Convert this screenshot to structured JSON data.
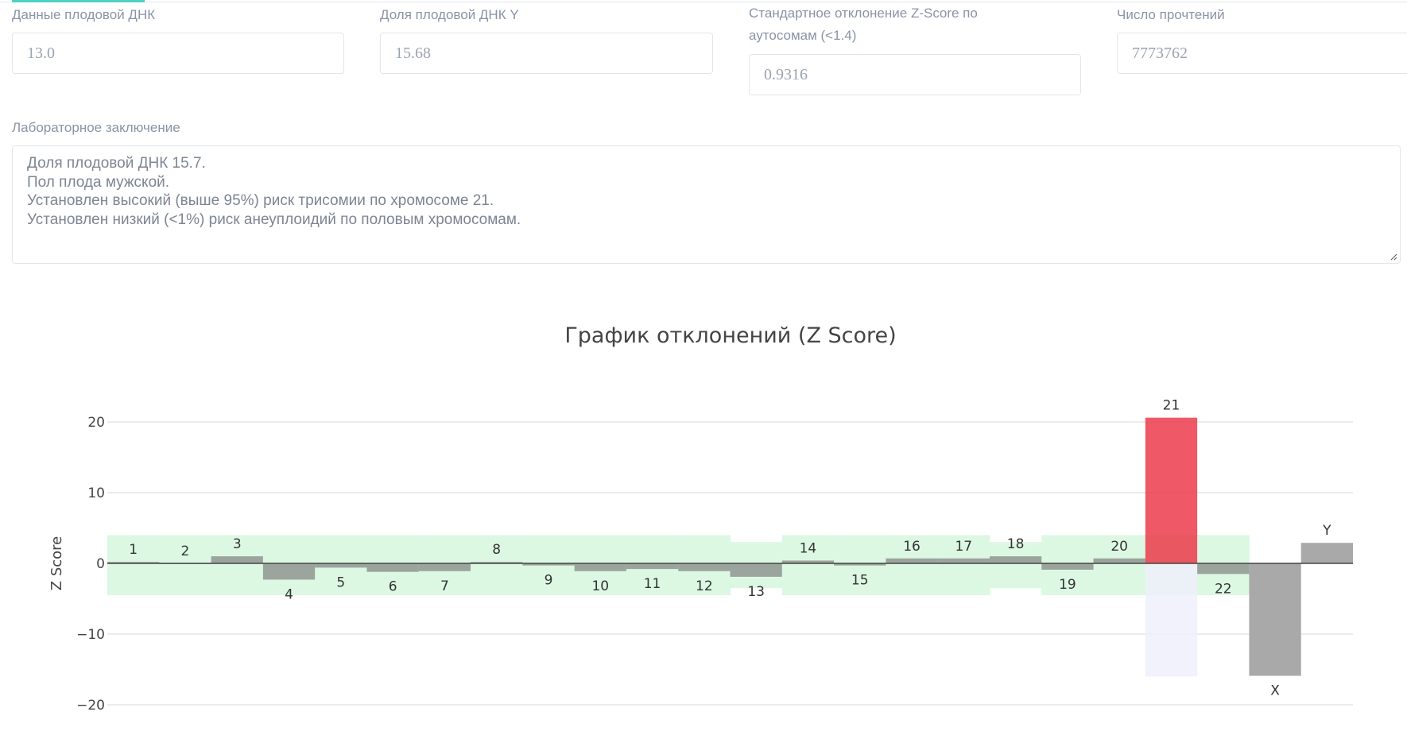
{
  "fields": [
    {
      "label": "Данные плодовой ДНК",
      "value": "13.0"
    },
    {
      "label": "Доля плодовой ДНК Y",
      "value": "15.68"
    },
    {
      "label": "Стандартное отклонение Z-Score по аутосомам (<1.4)",
      "value": "0.9316"
    },
    {
      "label": "Число прочтений",
      "value": "7773762"
    }
  ],
  "conclusion": {
    "label": "Лабораторное заключение",
    "text": "Доля плодовой ДНК 15.7.\nПол плода мужской.\nУстановлен высокий (выше 95%) риск трисомии по хромосоме 21.\nУстановлен низкий (<1%) риск анеуплоидий по половым хромосомам."
  },
  "chart_data": {
    "type": "bar",
    "title": "График отклонений (Z Score)",
    "ylabel": "Z Score",
    "xlabel": "",
    "ylim": [
      -21,
      23
    ],
    "yticks": [
      20,
      10,
      0,
      -10,
      -20
    ],
    "yticklabels": [
      "20",
      "10",
      "0",
      "−10",
      "−20"
    ],
    "grid": true,
    "categories": [
      "1",
      "2",
      "3",
      "4",
      "5",
      "6",
      "7",
      "8",
      "9",
      "10",
      "11",
      "12",
      "13",
      "14",
      "15",
      "16",
      "17",
      "18",
      "19",
      "20",
      "21",
      "22",
      "X",
      "Y"
    ],
    "values": [
      0.2,
      0.0,
      1.0,
      -2.3,
      -0.6,
      -1.2,
      -1.1,
      0.2,
      -0.3,
      -1.1,
      -0.8,
      -1.1,
      -1.9,
      0.4,
      -0.3,
      0.7,
      0.7,
      1.0,
      -0.9,
      0.7,
      20.6,
      -1.5,
      -15.9,
      2.9
    ],
    "normal_range": [
      [
        -4.5,
        4
      ],
      [
        -4.5,
        4
      ],
      [
        -4.5,
        4
      ],
      [
        -4.5,
        4
      ],
      [
        -4.5,
        4
      ],
      [
        -4.5,
        4
      ],
      [
        -4.5,
        4
      ],
      [
        -4.5,
        4
      ],
      [
        -4.5,
        4
      ],
      [
        -4.5,
        4
      ],
      [
        -4.5,
        4
      ],
      [
        -4.5,
        4
      ],
      [
        -3.5,
        3
      ],
      [
        -4.5,
        4
      ],
      [
        -4.5,
        4
      ],
      [
        -4.5,
        4
      ],
      [
        -4.5,
        4
      ],
      [
        -3.5,
        3
      ],
      [
        -4.5,
        4
      ],
      [
        -4.5,
        4
      ],
      [
        -4.5,
        4
      ],
      [
        -4.5,
        4
      ],
      null,
      null
    ],
    "extra_range": {
      "category": "21",
      "range": [
        -16,
        0
      ]
    },
    "colors": {
      "bar": "#808080",
      "highlight": "#eb3344",
      "sex_bar": "#a9a9a9",
      "normal_band": "#dcf8e3",
      "extra_band": "#eef0fc"
    },
    "highlighted": [
      "21"
    ]
  }
}
